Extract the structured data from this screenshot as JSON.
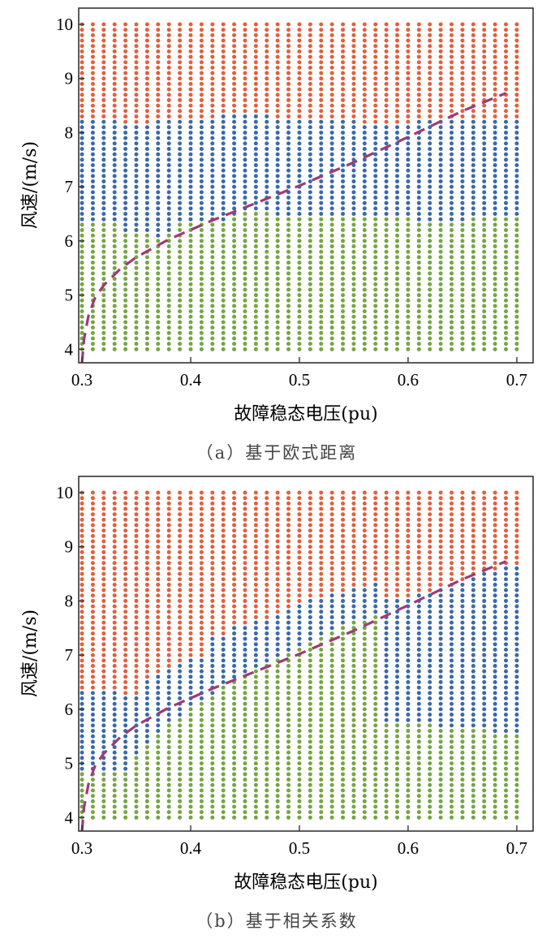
{
  "colors": {
    "red": "#E0603F",
    "blue": "#3B6AA6",
    "green": "#76A544",
    "boundary": "#9E3A78",
    "axis": "#333333"
  },
  "chart_data": [
    {
      "type": "scatter",
      "title": "",
      "caption": "（a）基于欧式距离",
      "xlabel": "故障稳态电压(pu)",
      "ylabel": "风速/(m/s)",
      "xlim": [
        0.297,
        0.715
      ],
      "ylim": [
        3.75,
        10.3
      ],
      "xticks": [
        0.3,
        0.4,
        0.5,
        0.6,
        0.7
      ],
      "xtick_labels": [
        "0.3",
        "0.4",
        "0.5",
        "0.6",
        "0.7"
      ],
      "yticks": [
        4,
        5,
        6,
        7,
        8,
        9,
        10
      ],
      "ytick_labels": [
        "4",
        "5",
        "6",
        "7",
        "8",
        "9",
        "10"
      ],
      "grid_x": {
        "start": 0.3,
        "stop": 0.7,
        "count": 41
      },
      "grid_y": {
        "start": 4.0,
        "stop": 10.0,
        "count": 61
      },
      "classes": [
        {
          "name": "red",
          "color": "#E0603F"
        },
        {
          "name": "blue",
          "color": "#3B6AA6"
        },
        {
          "name": "green",
          "color": "#76A544"
        }
      ],
      "green_upper": {
        "x": [
          0.3,
          0.33,
          0.34,
          0.36,
          0.37,
          0.38,
          0.39,
          0.43,
          0.44,
          0.46,
          0.47,
          0.48,
          0.6,
          0.61,
          0.7
        ],
        "y": [
          6.3,
          6.3,
          6.1,
          6.1,
          6.0,
          6.1,
          6.3,
          6.3,
          6.4,
          6.5,
          6.5,
          6.4,
          6.4,
          6.3,
          6.4
        ]
      },
      "blue_upper": {
        "x": [
          0.3,
          0.33,
          0.34,
          0.36,
          0.37,
          0.42,
          0.43,
          0.47,
          0.48,
          0.55,
          0.56,
          0.6,
          0.61,
          0.7
        ],
        "y": [
          8.2,
          8.2,
          8.1,
          8.1,
          8.2,
          8.2,
          8.3,
          8.3,
          8.2,
          8.2,
          8.1,
          8.1,
          8.2,
          8.2
        ]
      },
      "boundary_curve": {
        "x": [
          0.3,
          0.302,
          0.306,
          0.312,
          0.32,
          0.335,
          0.35,
          0.38,
          0.42,
          0.46,
          0.5,
          0.55,
          0.6,
          0.65,
          0.69
        ],
        "y": [
          3.75,
          4.2,
          4.62,
          4.95,
          5.18,
          5.48,
          5.7,
          6.03,
          6.38,
          6.7,
          7.02,
          7.45,
          7.92,
          8.4,
          8.73
        ]
      }
    },
    {
      "type": "scatter",
      "title": "",
      "caption": "（b）基于相关系数",
      "xlabel": "故障稳态电压(pu)",
      "ylabel": "风速/(m/s)",
      "xlim": [
        0.297,
        0.715
      ],
      "ylim": [
        3.75,
        10.3
      ],
      "xticks": [
        0.3,
        0.4,
        0.5,
        0.6,
        0.7
      ],
      "xtick_labels": [
        "0.3",
        "0.4",
        "0.5",
        "0.6",
        "0.7"
      ],
      "yticks": [
        4,
        5,
        6,
        7,
        8,
        9,
        10
      ],
      "ytick_labels": [
        "4",
        "5",
        "6",
        "7",
        "8",
        "9",
        "10"
      ],
      "grid_x": {
        "start": 0.3,
        "stop": 0.7,
        "count": 41
      },
      "grid_y": {
        "start": 4.0,
        "stop": 10.0,
        "count": 61
      },
      "classes": [
        {
          "name": "red",
          "color": "#E0603F"
        },
        {
          "name": "blue",
          "color": "#3B6AA6"
        },
        {
          "name": "green",
          "color": "#76A544"
        }
      ],
      "green_upper": {
        "x": [
          0.3,
          0.34,
          0.35,
          0.36,
          0.37,
          0.4,
          0.45,
          0.5,
          0.55,
          0.57,
          0.58,
          0.67,
          0.68,
          0.7
        ],
        "y": [
          4.8,
          4.8,
          5.1,
          5.3,
          5.5,
          6.0,
          6.6,
          7.1,
          7.6,
          7.7,
          5.7,
          5.6,
          5.5,
          5.5
        ]
      },
      "blue_upper": {
        "x": [
          0.3,
          0.33,
          0.34,
          0.35,
          0.36,
          0.37,
          0.38,
          0.4,
          0.41,
          0.42,
          0.43,
          0.44,
          0.45,
          0.46,
          0.48,
          0.5,
          0.52,
          0.54,
          0.56,
          0.57,
          0.58,
          0.6,
          0.62,
          0.64,
          0.66,
          0.68,
          0.7
        ],
        "y": [
          6.3,
          6.3,
          6.2,
          6.2,
          6.5,
          6.6,
          6.7,
          6.9,
          6.9,
          7.3,
          7.3,
          7.5,
          7.5,
          7.6,
          7.7,
          7.9,
          8.0,
          8.1,
          8.2,
          8.3,
          8.0,
          8.0,
          8.1,
          8.2,
          8.4,
          8.5,
          8.6
        ]
      },
      "boundary_curve": {
        "x": [
          0.3,
          0.302,
          0.306,
          0.312,
          0.32,
          0.335,
          0.35,
          0.38,
          0.42,
          0.46,
          0.5,
          0.55,
          0.6,
          0.65,
          0.69
        ],
        "y": [
          3.75,
          4.2,
          4.62,
          4.95,
          5.18,
          5.48,
          5.7,
          6.03,
          6.38,
          6.7,
          7.02,
          7.45,
          7.92,
          8.4,
          8.73
        ]
      }
    }
  ]
}
